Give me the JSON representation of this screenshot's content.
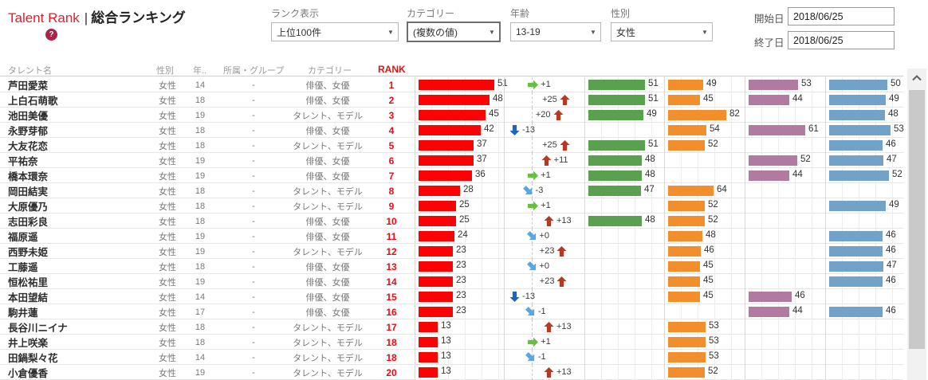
{
  "header": {
    "title_en": "Talent Rank",
    "title_sep": "|",
    "title_ja": "総合ランキング",
    "help": "?"
  },
  "filters": {
    "rank_display": {
      "label": "ランク表示",
      "value": "上位100件"
    },
    "category": {
      "label": "カテゴリー",
      "value": "(複数の値)"
    },
    "age": {
      "label": "年齢",
      "value": "13-19"
    },
    "gender": {
      "label": "性別",
      "value": "女性"
    },
    "start_date": {
      "label": "開始日",
      "value": "2018/06/25"
    },
    "end_date": {
      "label": "終了日",
      "value": "2018/06/25"
    }
  },
  "table": {
    "columns": [
      "タレント名",
      "性別",
      "年..",
      "所属・グループ",
      "カテゴリー",
      "RANK"
    ],
    "rows": [
      {
        "name": "芦田愛菜",
        "gender": "女性",
        "age": "14",
        "group": "-",
        "category": "俳優、女優",
        "rank": "1",
        "score": 51,
        "change": {
          "value": 1,
          "label": "+1",
          "dir": "right"
        },
        "bars": {
          "green": 51,
          "orange": 49,
          "purple": 53,
          "blue": 50
        }
      },
      {
        "name": "上白石萌歌",
        "gender": "女性",
        "age": "18",
        "group": "-",
        "category": "俳優、女優",
        "rank": "2",
        "score": 48,
        "change": {
          "value": 25,
          "label": "+25",
          "dir": "up"
        },
        "bars": {
          "green": 51,
          "orange": 45,
          "purple": 44,
          "blue": 49
        }
      },
      {
        "name": "池田美優",
        "gender": "女性",
        "age": "19",
        "group": "-",
        "category": "タレント、モデル",
        "rank": "3",
        "score": 45,
        "change": {
          "value": 20,
          "label": "+20",
          "dir": "up"
        },
        "bars": {
          "green": 49,
          "orange": 82,
          "purple": null,
          "blue": 48
        }
      },
      {
        "name": "永野芽郁",
        "gender": "女性",
        "age": "18",
        "group": "-",
        "category": "俳優、女優",
        "rank": "4",
        "score": 42,
        "change": {
          "value": -13,
          "label": "-13",
          "dir": "down"
        },
        "bars": {
          "green": null,
          "orange": 54,
          "purple": 61,
          "blue": 53
        }
      },
      {
        "name": "大友花恋",
        "gender": "女性",
        "age": "18",
        "group": "-",
        "category": "タレント、モデル",
        "rank": "5",
        "score": 37,
        "change": {
          "value": 25,
          "label": "+25",
          "dir": "up"
        },
        "bars": {
          "green": 51,
          "orange": 52,
          "purple": null,
          "blue": 46
        }
      },
      {
        "name": "平祐奈",
        "gender": "女性",
        "age": "19",
        "group": "-",
        "category": "俳優、女優",
        "rank": "6",
        "score": 37,
        "change": {
          "value": 11,
          "label": "+11",
          "dir": "up"
        },
        "bars": {
          "green": 48,
          "orange": null,
          "purple": 52,
          "blue": 47
        }
      },
      {
        "name": "橋本環奈",
        "gender": "女性",
        "age": "19",
        "group": "-",
        "category": "俳優、女優",
        "rank": "7",
        "score": 36,
        "change": {
          "value": 1,
          "label": "+1",
          "dir": "right"
        },
        "bars": {
          "green": 48,
          "orange": null,
          "purple": 44,
          "blue": 52
        }
      },
      {
        "name": "岡田結実",
        "gender": "女性",
        "age": "18",
        "group": "-",
        "category": "タレント、モデル",
        "rank": "8",
        "score": 28,
        "change": {
          "value": -3,
          "label": "-3",
          "dir": "downright"
        },
        "bars": {
          "green": 47,
          "orange": 64,
          "purple": null,
          "blue": null
        }
      },
      {
        "name": "大原優乃",
        "gender": "女性",
        "age": "18",
        "group": "-",
        "category": "タレント、モデル",
        "rank": "9",
        "score": 25,
        "change": {
          "value": 1,
          "label": "+1",
          "dir": "right"
        },
        "bars": {
          "green": null,
          "orange": 52,
          "purple": null,
          "blue": 49
        }
      },
      {
        "name": "志田彩良",
        "gender": "女性",
        "age": "18",
        "group": "-",
        "category": "俳優、女優",
        "rank": "10",
        "score": 25,
        "change": {
          "value": 13,
          "label": "+13",
          "dir": "up"
        },
        "bars": {
          "green": 48,
          "orange": 52,
          "purple": null,
          "blue": null
        }
      },
      {
        "name": "福原遥",
        "gender": "女性",
        "age": "19",
        "group": "-",
        "category": "俳優、女優",
        "rank": "11",
        "score": 24,
        "change": {
          "value": 0,
          "label": "+0",
          "dir": "downright"
        },
        "bars": {
          "green": null,
          "orange": 48,
          "purple": null,
          "blue": 46
        }
      },
      {
        "name": "西野未姫",
        "gender": "女性",
        "age": "19",
        "group": "-",
        "category": "タレント、モデル",
        "rank": "12",
        "score": 23,
        "change": {
          "value": 23,
          "label": "+23",
          "dir": "up"
        },
        "bars": {
          "green": null,
          "orange": 46,
          "purple": null,
          "blue": 46
        }
      },
      {
        "name": "工藤遥",
        "gender": "女性",
        "age": "18",
        "group": "-",
        "category": "俳優、女優",
        "rank": "13",
        "score": 23,
        "change": {
          "value": 0,
          "label": "+0",
          "dir": "downright"
        },
        "bars": {
          "green": null,
          "orange": 45,
          "purple": null,
          "blue": 47
        }
      },
      {
        "name": "恒松祐里",
        "gender": "女性",
        "age": "19",
        "group": "-",
        "category": "俳優、女優",
        "rank": "14",
        "score": 23,
        "change": {
          "value": 23,
          "label": "+23",
          "dir": "up"
        },
        "bars": {
          "green": null,
          "orange": 45,
          "purple": null,
          "blue": 46
        }
      },
      {
        "name": "本田望結",
        "gender": "女性",
        "age": "14",
        "group": "-",
        "category": "俳優、女優",
        "rank": "15",
        "score": 23,
        "change": {
          "value": -13,
          "label": "-13",
          "dir": "down"
        },
        "bars": {
          "green": null,
          "orange": 45,
          "purple": 46,
          "blue": null
        }
      },
      {
        "name": "駒井蓮",
        "gender": "女性",
        "age": "17",
        "group": "-",
        "category": "俳優、女優",
        "rank": "16",
        "score": 23,
        "change": {
          "value": -1,
          "label": "-1",
          "dir": "downright"
        },
        "bars": {
          "green": null,
          "orange": null,
          "purple": 44,
          "blue": 46
        }
      },
      {
        "name": "長谷川ニイナ",
        "gender": "女性",
        "age": "18",
        "group": "-",
        "category": "タレント、モデル",
        "rank": "17",
        "score": 13,
        "change": {
          "value": 13,
          "label": "+13",
          "dir": "up"
        },
        "bars": {
          "green": null,
          "orange": 53,
          "purple": null,
          "blue": null
        }
      },
      {
        "name": "井上咲楽",
        "gender": "女性",
        "age": "18",
        "group": "-",
        "category": "タレント、モデル",
        "rank": "18",
        "score": 13,
        "change": {
          "value": 1,
          "label": "+1",
          "dir": "right"
        },
        "bars": {
          "green": null,
          "orange": 53,
          "purple": null,
          "blue": null
        }
      },
      {
        "name": "田鍋梨々花",
        "gender": "女性",
        "age": "14",
        "group": "-",
        "category": "タレント、モデル",
        "rank": "18",
        "score": 13,
        "change": {
          "value": -1,
          "label": "-1",
          "dir": "downright"
        },
        "bars": {
          "green": null,
          "orange": 53,
          "purple": null,
          "blue": null
        }
      },
      {
        "name": "小倉優香",
        "gender": "女性",
        "age": "19",
        "group": "-",
        "category": "タレント、モデル",
        "rank": "20",
        "score": 13,
        "change": {
          "value": 13,
          "label": "+13",
          "dir": "up"
        },
        "bars": {
          "green": null,
          "orange": 52,
          "purple": null,
          "blue": null
        }
      }
    ]
  },
  "colors": {
    "bar_red": "#fb0304",
    "bar_green": "#59a14f",
    "bar_orange": "#f28e2b",
    "bar_purple": "#b07aa1",
    "bar_blue": "#73a2c9",
    "arrow_up": "#b43b22",
    "arrow_down": "#1f63c2",
    "arrow_right": "#66bf3f",
    "arrow_downright": "#58a7e0",
    "rank_text": "#e60d18",
    "title_accent": "#e31c2d"
  }
}
